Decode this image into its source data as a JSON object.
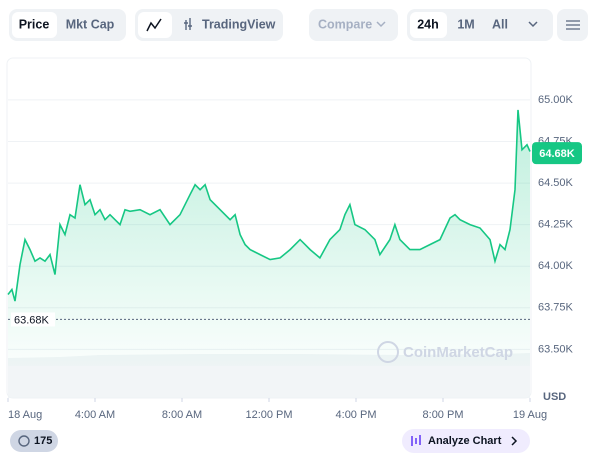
{
  "ui": {
    "price": "Price",
    "mkt_cap": "Mkt Cap",
    "tradingview": "TradingView",
    "compare": "Compare",
    "range_24h": "24h",
    "range_1m": "1M",
    "range_all": "All",
    "currency": "USD",
    "badge_count": "175",
    "analyze": "Analyze Chart",
    "watermark": "CoinMarketCap"
  },
  "chart_data": {
    "type": "line",
    "color": "#16c784",
    "x": [
      0,
      0.18,
      0.32,
      0.55,
      0.78,
      1.01,
      1.24,
      1.47,
      1.7,
      1.93,
      2.16,
      2.39,
      2.62,
      2.85,
      3.08,
      3.31,
      3.54,
      3.77,
      4.0,
      4.23,
      4.46,
      4.69,
      5.15,
      5.38,
      5.61,
      6.07,
      6.53,
      6.99,
      7.45,
      7.91,
      8.37,
      8.6,
      8.83,
      9.06,
      9.29,
      9.75,
      10.21,
      10.44,
      10.67,
      10.9,
      11.13,
      11.59,
      12.05,
      12.51,
      12.97,
      13.43,
      13.66,
      13.89,
      14.34,
      14.8,
      15.26,
      15.49,
      15.72,
      15.95,
      16.41,
      16.87,
      17.1,
      17.56,
      17.79,
      18.02,
      18.48,
      18.94,
      19.4,
      19.86,
      20.32,
      20.55,
      20.78,
      21.24,
      21.7,
      22.16,
      22.39,
      22.62,
      22.85,
      23.08,
      23.31,
      23.45,
      23.63,
      23.86,
      24.0
    ],
    "values": [
      63.83,
      63.86,
      63.79,
      64.01,
      64.16,
      64.1,
      64.03,
      64.05,
      64.03,
      64.07,
      63.95,
      64.25,
      64.19,
      64.31,
      64.29,
      64.49,
      64.37,
      64.4,
      64.31,
      64.34,
      64.28,
      64.31,
      64.25,
      64.34,
      64.33,
      64.34,
      64.31,
      64.34,
      64.25,
      64.31,
      64.43,
      64.49,
      64.46,
      64.49,
      64.4,
      64.34,
      64.28,
      64.31,
      64.19,
      64.13,
      64.1,
      64.07,
      64.04,
      64.05,
      64.1,
      64.16,
      64.13,
      64.1,
      64.05,
      64.16,
      64.22,
      64.31,
      64.37,
      64.25,
      64.22,
      64.16,
      64.07,
      64.16,
      64.25,
      64.16,
      64.1,
      64.1,
      64.13,
      64.16,
      64.29,
      64.31,
      64.28,
      64.25,
      64.23,
      64.16,
      64.03,
      64.13,
      64.1,
      64.22,
      64.46,
      64.94,
      64.7,
      64.73,
      64.69
    ],
    "xlim": [
      0,
      24
    ],
    "xticks": [
      {
        "value": 0,
        "label": "18 Aug"
      },
      {
        "value": 4,
        "label": "4:00 AM"
      },
      {
        "value": 8,
        "label": "8:00 AM"
      },
      {
        "value": 12,
        "label": "12:00 PM"
      },
      {
        "value": 16,
        "label": "4:00 PM"
      },
      {
        "value": 20,
        "label": "8:00 PM"
      },
      {
        "value": 24,
        "label": "19 Aug"
      }
    ],
    "ylim": [
      63.4,
      65.24
    ],
    "yticks": [
      {
        "value": 63.5,
        "label": "63.50K"
      },
      {
        "value": 63.75,
        "label": "63.75K"
      },
      {
        "value": 64,
        "label": "64.00K"
      },
      {
        "value": 64.25,
        "label": "64.25K"
      },
      {
        "value": 64.5,
        "label": "64.50K"
      },
      {
        "value": 64.75,
        "label": "64.75K"
      },
      {
        "value": 65,
        "label": "65.00K"
      }
    ],
    "grid": true,
    "current_price": {
      "value": 64.68,
      "label": "64.68K"
    },
    "reference_price": {
      "value": 63.68,
      "label": "63.68K"
    }
  }
}
